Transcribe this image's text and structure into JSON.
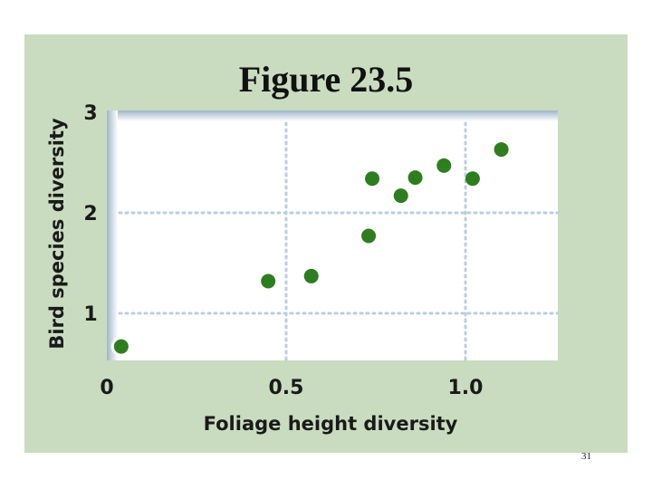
{
  "slide": {
    "title": "Figure 23.5",
    "page_number": "31",
    "colors": {
      "panel": "#c9dcbf",
      "plot_bg": "#ffffff",
      "point": "#2e7d1e",
      "grid": "#b8cfe0"
    }
  },
  "chart_data": {
    "type": "scatter",
    "title": "",
    "xlabel": "Foliage height diversity",
    "ylabel": "Bird species diversity",
    "xlim": [
      0,
      1.25
    ],
    "ylim": [
      0.5,
      3
    ],
    "x_ticks": [
      0,
      0.5,
      1.0
    ],
    "x_tick_labels": [
      "0",
      "0.5",
      "1.0"
    ],
    "y_ticks": [
      1,
      2,
      3
    ],
    "y_tick_labels": [
      "1",
      "2",
      "3"
    ],
    "grid": true,
    "legend": "none",
    "points": [
      {
        "x": 0.04,
        "y": 0.67
      },
      {
        "x": 0.45,
        "y": 1.32
      },
      {
        "x": 0.57,
        "y": 1.37
      },
      {
        "x": 0.73,
        "y": 1.77
      },
      {
        "x": 0.74,
        "y": 2.34
      },
      {
        "x": 0.82,
        "y": 2.17
      },
      {
        "x": 0.86,
        "y": 2.35
      },
      {
        "x": 0.94,
        "y": 2.47
      },
      {
        "x": 1.02,
        "y": 2.34
      },
      {
        "x": 1.1,
        "y": 2.63
      }
    ]
  }
}
